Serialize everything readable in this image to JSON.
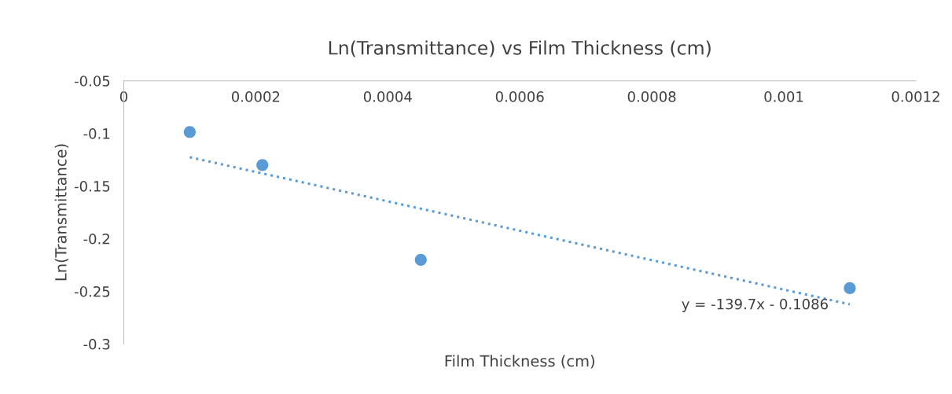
{
  "chart_data": {
    "type": "scatter",
    "title": "Ln(Transmittance) vs Film Thickness (cm)",
    "xlabel": "Film Thickness (cm)",
    "ylabel": "Ln(Transmittance)",
    "x": [
      0.0001,
      0.00021,
      0.00045,
      0.0011
    ],
    "series": [
      {
        "color": "#5b9bd5",
        "values": [
          -0.0987,
          -0.13,
          -0.22,
          -0.247
        ],
        "marker": "circle"
      },
      {
        "type": "line",
        "color": "#5b9bd5",
        "x": [
          0.0001,
          0.0011
        ],
        "values": [
          -0.1226,
          -0.2623
        ],
        "line_style": "dotted"
      }
    ],
    "xlim": [
      0,
      0.0012
    ],
    "xticks": [
      0,
      0.0002,
      0.0004,
      0.0006,
      0.0008,
      0.001,
      0.0012
    ],
    "ylim": [
      -0.3,
      -0.05
    ],
    "yticks": [
      -0.05,
      -0.1,
      -0.15,
      -0.2,
      -0.25,
      -0.3
    ],
    "annotations": [
      "y = -139.7x - 0.1086"
    ],
    "grid": false,
    "legend": false
  }
}
